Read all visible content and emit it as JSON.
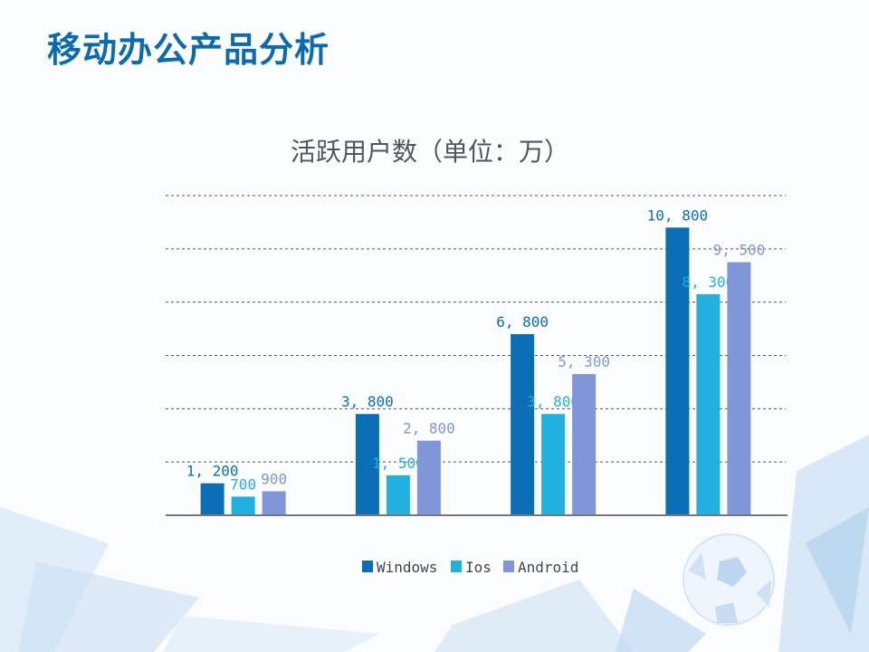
{
  "slide": {
    "title": "移动办公产品分析"
  },
  "chart_data": {
    "type": "bar",
    "title": "活跃用户数（单位：万）",
    "categories": [
      "",
      "",
      "",
      ""
    ],
    "series": [
      {
        "name": "Windows",
        "color": "#0b6fb8",
        "values": [
          1200,
          3800,
          6800,
          10800
        ],
        "labels": [
          "1, 200",
          "3, 800",
          "6, 800",
          "10, 800"
        ]
      },
      {
        "name": "Ios",
        "color": "#22b0e0",
        "values": [
          700,
          1500,
          3800,
          8300
        ],
        "labels": [
          "700",
          "1, 500",
          "3, 800",
          "8, 300"
        ]
      },
      {
        "name": "Android",
        "color": "#7f96d8",
        "values": [
          900,
          2800,
          5300,
          9500
        ],
        "labels": [
          "900",
          "2, 800",
          "5, 300",
          "9, 500"
        ]
      }
    ],
    "ylim": [
      0,
      12000
    ],
    "ygrid_step": 2000,
    "grid": "dashed horizontal",
    "y_tick_labels_shown": false,
    "legend": "bottom"
  }
}
